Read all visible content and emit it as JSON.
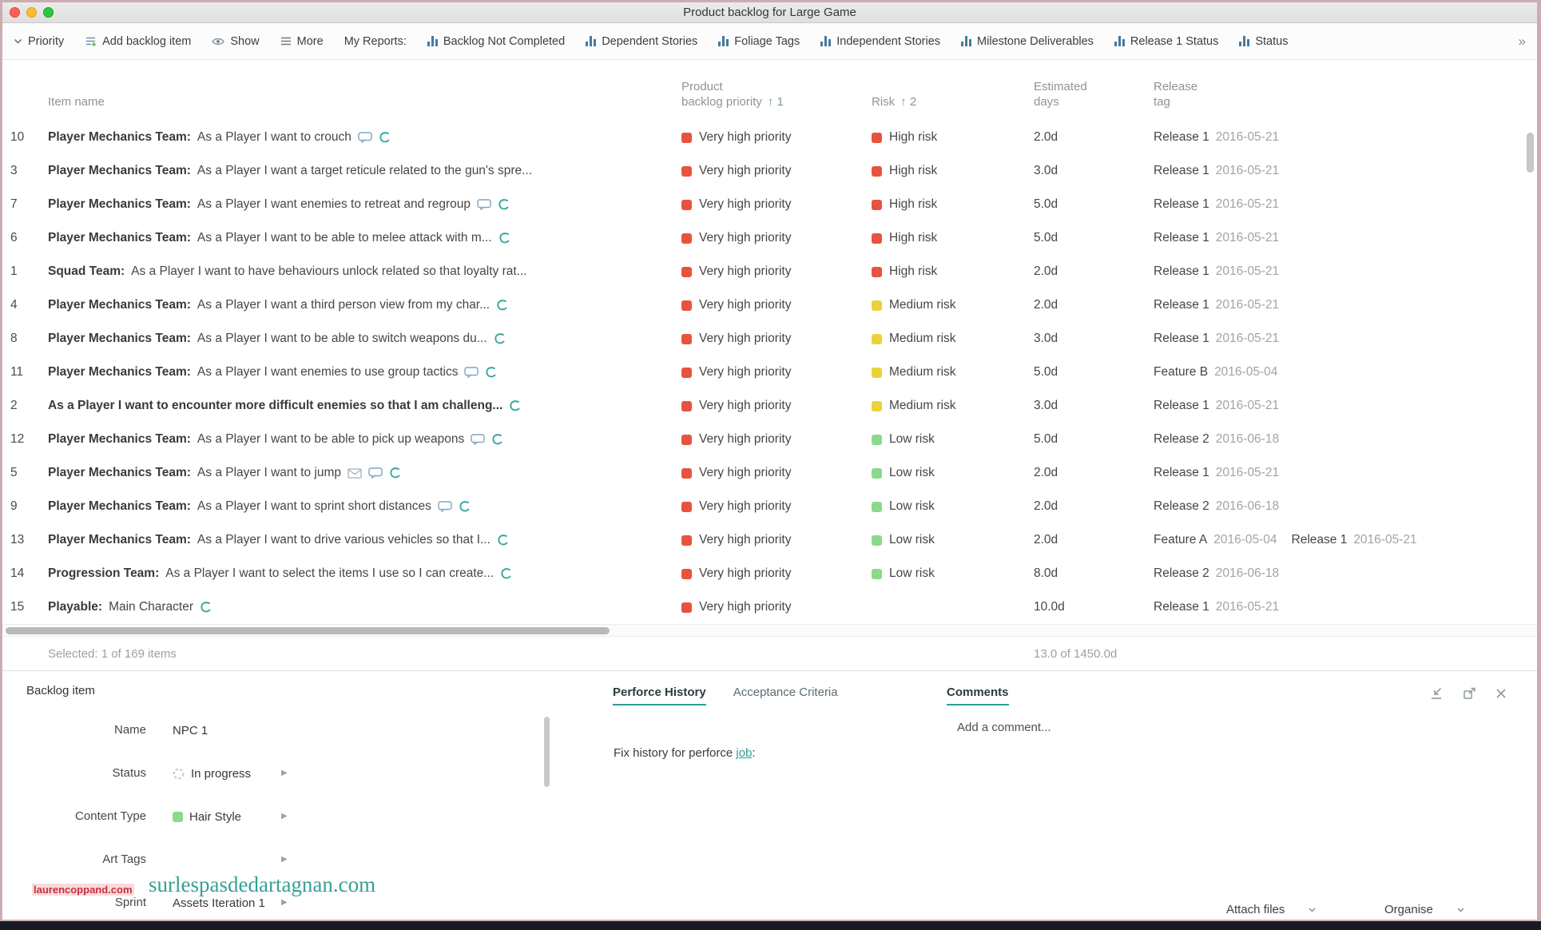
{
  "colors": {
    "accent": "#2f9e92",
    "priority_red": "#e8533f",
    "risk_red": "#e8533f",
    "risk_yellow": "#ecd23a",
    "risk_green": "#8bd98b"
  },
  "window": {
    "title": "Product backlog for Large Game"
  },
  "toolbar": {
    "priority": "Priority",
    "add_backlog_item": "Add backlog item",
    "show": "Show",
    "more": "More",
    "my_reports": "My Reports:",
    "reports": [
      "Backlog Not Completed",
      "Dependent Stories",
      "Foliage Tags",
      "Independent Stories",
      "Milestone Deliverables",
      "Release 1 Status",
      "Status"
    ],
    "overflow": "»"
  },
  "table": {
    "header": {
      "item_name": "Item name",
      "priority_line1": "Product",
      "priority_line2": "backlog priority",
      "priority_sort": "↑ 1",
      "risk": "Risk",
      "risk_sort": "↑ 2",
      "days_line1": "Estimated",
      "days_line2": "days",
      "release_line1": "Release",
      "release_line2": "tag"
    },
    "rows": [
      {
        "num": "10",
        "bold": "Player Mechanics Team:",
        "text": "As a Player I want to crouch",
        "icons": [
          "bubble",
          "curl"
        ],
        "priority": "Very high priority",
        "risk": "High risk",
        "risk_color": "risk_red",
        "days": "2.0d",
        "releases": [
          {
            "name": "Release 1",
            "date": "2016-05-21"
          }
        ]
      },
      {
        "num": "3",
        "bold": "Player Mechanics Team:",
        "text": "As a Player I want a target reticule related to the gun's spre...",
        "icons": [],
        "priority": "Very high priority",
        "risk": "High risk",
        "risk_color": "risk_red",
        "days": "3.0d",
        "releases": [
          {
            "name": "Release 1",
            "date": "2016-05-21"
          }
        ]
      },
      {
        "num": "7",
        "bold": "Player Mechanics Team:",
        "text": "As a Player I want enemies to retreat and regroup",
        "icons": [
          "bubble",
          "curl"
        ],
        "priority": "Very high priority",
        "risk": "High risk",
        "risk_color": "risk_red",
        "days": "5.0d",
        "releases": [
          {
            "name": "Release 1",
            "date": "2016-05-21"
          }
        ]
      },
      {
        "num": "6",
        "bold": "Player Mechanics Team:",
        "text": "As a Player I want to be able to melee attack with m...",
        "icons": [
          "curl"
        ],
        "priority": "Very high priority",
        "risk": "High risk",
        "risk_color": "risk_red",
        "days": "5.0d",
        "releases": [
          {
            "name": "Release 1",
            "date": "2016-05-21"
          }
        ]
      },
      {
        "num": "1",
        "bold": "Squad Team:",
        "text": "As a Player I want to have behaviours unlock related so that loyalty rat...",
        "icons": [],
        "priority": "Very high priority",
        "risk": "High risk",
        "risk_color": "risk_red",
        "days": "2.0d",
        "releases": [
          {
            "name": "Release 1",
            "date": "2016-05-21"
          }
        ]
      },
      {
        "num": "4",
        "bold": "Player Mechanics Team:",
        "text": "As a Player I want a third person view from my char...",
        "icons": [
          "curl"
        ],
        "priority": "Very high priority",
        "risk": "Medium risk",
        "risk_color": "risk_yellow",
        "days": "2.0d",
        "releases": [
          {
            "name": "Release 1",
            "date": "2016-05-21"
          }
        ]
      },
      {
        "num": "8",
        "bold": "Player Mechanics Team:",
        "text": "As a Player I want to be able to switch weapons du...",
        "icons": [
          "curl"
        ],
        "priority": "Very high priority",
        "risk": "Medium risk",
        "risk_color": "risk_yellow",
        "days": "3.0d",
        "releases": [
          {
            "name": "Release 1",
            "date": "2016-05-21"
          }
        ]
      },
      {
        "num": "11",
        "bold": "Player Mechanics Team:",
        "text": "As a Player I want enemies to use group tactics",
        "icons": [
          "bubble",
          "curl"
        ],
        "priority": "Very high priority",
        "risk": "Medium risk",
        "risk_color": "risk_yellow",
        "days": "5.0d",
        "releases": [
          {
            "name": "Feature B",
            "date": "2016-05-04"
          }
        ]
      },
      {
        "num": "2",
        "bold": "As a Player I want to encounter more difficult enemies so that I am challeng...",
        "text": "",
        "icons": [
          "curl"
        ],
        "priority": "Very high priority",
        "risk": "Medium risk",
        "risk_color": "risk_yellow",
        "days": "3.0d",
        "releases": [
          {
            "name": "Release 1",
            "date": "2016-05-21"
          }
        ]
      },
      {
        "num": "12",
        "bold": "Player Mechanics Team:",
        "text": "As a Player I want to be able to pick up weapons",
        "icons": [
          "bubble",
          "curl"
        ],
        "priority": "Very high priority",
        "risk": "Low risk",
        "risk_color": "risk_green",
        "days": "5.0d",
        "releases": [
          {
            "name": "Release 2",
            "date": "2016-06-18"
          }
        ]
      },
      {
        "num": "5",
        "bold": "Player Mechanics Team:",
        "text": "As a Player I want to jump",
        "icons": [
          "mail",
          "bubble",
          "curl"
        ],
        "priority": "Very high priority",
        "risk": "Low risk",
        "risk_color": "risk_green",
        "days": "2.0d",
        "releases": [
          {
            "name": "Release 1",
            "date": "2016-05-21"
          }
        ]
      },
      {
        "num": "9",
        "bold": "Player Mechanics Team:",
        "text": "As a Player I want to sprint short distances",
        "icons": [
          "bubble",
          "curl"
        ],
        "priority": "Very high priority",
        "risk": "Low risk",
        "risk_color": "risk_green",
        "days": "2.0d",
        "releases": [
          {
            "name": "Release 2",
            "date": "2016-06-18"
          }
        ]
      },
      {
        "num": "13",
        "bold": "Player Mechanics Team:",
        "text": "As a Player I want to drive various vehicles so that I...",
        "icons": [
          "curl"
        ],
        "priority": "Very high priority",
        "risk": "Low risk",
        "risk_color": "risk_green",
        "days": "2.0d",
        "releases": [
          {
            "name": "Feature A",
            "date": "2016-05-04"
          },
          {
            "name": "Release 1",
            "date": "2016-05-21"
          }
        ]
      },
      {
        "num": "14",
        "bold": "Progression Team:",
        "text": "As a Player I want to select the items I use so I can create...",
        "icons": [
          "curl"
        ],
        "priority": "Very high priority",
        "risk": "Low risk",
        "risk_color": "risk_green",
        "days": "8.0d",
        "releases": [
          {
            "name": "Release 2",
            "date": "2016-06-18"
          }
        ]
      },
      {
        "num": "15",
        "bold": "Playable:",
        "text": "Main Character",
        "icons": [
          "curl"
        ],
        "priority": "Very high priority",
        "risk": "",
        "risk_color": "",
        "days": "10.0d",
        "releases": [
          {
            "name": "Release 1",
            "date": "2016-05-21"
          }
        ]
      }
    ],
    "selected_summary": "Selected: 1 of 169 items",
    "days_total": "13.0 of 1450.0d"
  },
  "details": {
    "panel_title": "Backlog item",
    "fields": [
      {
        "label": "Name",
        "value": "NPC 1",
        "icon": "",
        "arrow": false
      },
      {
        "label": "Status",
        "value": "In progress",
        "icon": "spinner",
        "arrow": true
      },
      {
        "label": "Content Type",
        "value": "Hair Style",
        "icon": "green-square",
        "arrow": true
      },
      {
        "label": "Art Tags",
        "value": "",
        "icon": "",
        "arrow": true
      },
      {
        "label": "Sprint",
        "value": "Assets Iteration 1",
        "icon": "",
        "arrow": true
      }
    ],
    "tabs": [
      {
        "label": "Perforce History",
        "active": true
      },
      {
        "label": "Acceptance Criteria",
        "active": false
      }
    ],
    "perforce_text_before": "Fix history for perforce ",
    "perforce_link": "job",
    "perforce_text_after": ":",
    "comments_tab": "Comments",
    "comment_placeholder": "Add a comment...",
    "attach_files": "Attach files",
    "organise": "Organise"
  },
  "watermarks": {
    "teal": "surlespasdedartagnan.com",
    "red": "laurencoppand.com"
  }
}
